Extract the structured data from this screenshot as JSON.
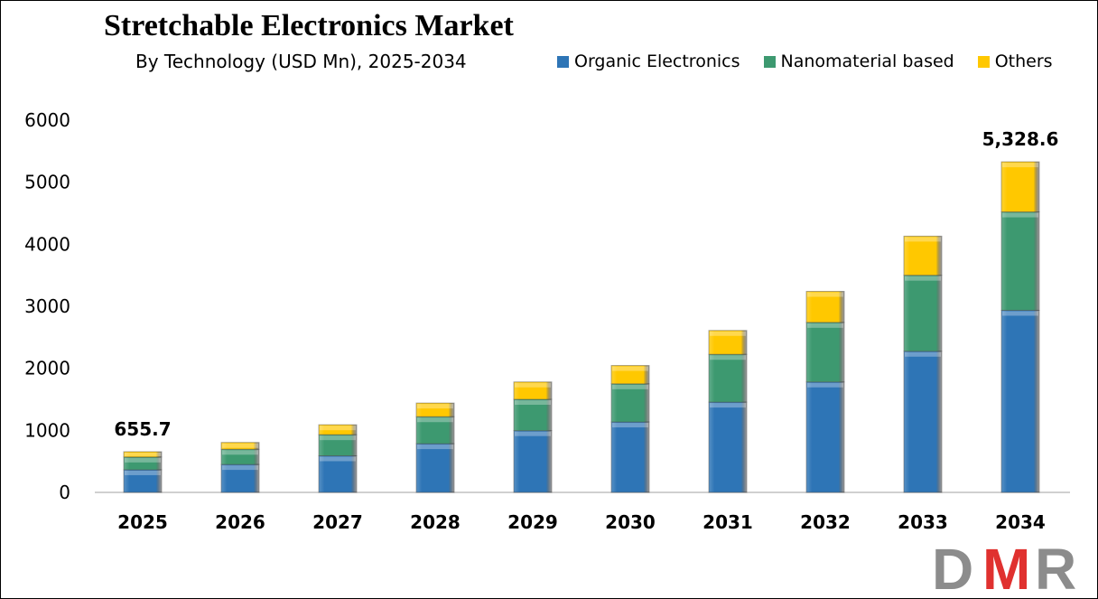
{
  "chart_data": {
    "type": "bar",
    "stacked": true,
    "title": "Stretchable Electronics Market",
    "subtitle": "By Technology (USD Mn), 2025-2034",
    "xlabel": "",
    "ylabel": "",
    "ylim": [
      0,
      6000
    ],
    "yticks": [
      0,
      1000,
      2000,
      3000,
      4000,
      5000,
      6000
    ],
    "grid": false,
    "legend_placement": "top-right",
    "categories": [
      "2025",
      "2026",
      "2027",
      "2028",
      "2029",
      "2030",
      "2031",
      "2032",
      "2033",
      "2034"
    ],
    "series": [
      {
        "name": "Organic Electronics",
        "color": "#2e75b6",
        "values": [
          365,
          450,
          590,
          785,
          995,
          1135,
          1455,
          1780,
          2275,
          2935
        ]
      },
      {
        "name": "Nanomaterial based",
        "color": "#3d9970",
        "values": [
          205,
          245,
          340,
          435,
          505,
          615,
          770,
          960,
          1225,
          1586
        ]
      },
      {
        "name": "Others",
        "color": "#ffc800",
        "values": [
          85.7,
          110,
          160,
          220,
          280,
          295,
          385,
          500,
          630,
          807.6
        ]
      }
    ],
    "data_labels": [
      {
        "category": "2025",
        "text": "655.7"
      },
      {
        "category": "2034",
        "text": "5,328.6"
      }
    ]
  },
  "logo": {
    "text": "DMR",
    "colors": [
      "#8c8c8c",
      "#e0312f",
      "#8c8c8c"
    ]
  }
}
